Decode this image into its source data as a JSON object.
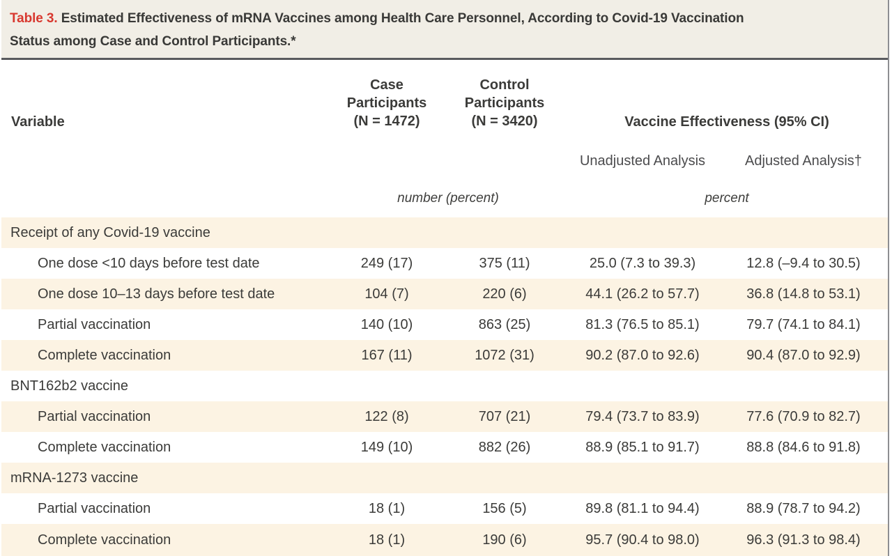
{
  "table": {
    "label": "Table 3.",
    "title_line1": "Estimated Effectiveness of mRNA Vaccines among Health Care Personnel, According to Covid-19 Vaccination",
    "title_line2": "Status among Case and Control Participants.*",
    "accent_color": "#d8382f",
    "title_bg": "#f1eee6",
    "stripe_color": "#fcf3e3",
    "rule_color": "#595a5e"
  },
  "header": {
    "variable": "Variable",
    "case_col": [
      "Case",
      "Participants",
      "(N = 1472)"
    ],
    "control_col": [
      "Control",
      "Participants",
      "(N = 3420)"
    ],
    "effectiveness": "Vaccine Effectiveness (95% CI)",
    "unadjusted": "Unadjusted Analysis",
    "adjusted": "Adjusted Analysis†",
    "units_left": "number (percent)",
    "units_right": "percent"
  },
  "rows": [
    {
      "type": "section",
      "label": "Receipt of any Covid-19 vaccine"
    },
    {
      "type": "data",
      "label": "One dose <10 days before test date",
      "case": "249 (17)",
      "control": "375 (11)",
      "unadjusted": "25.0 (7.3 to 39.3)",
      "adjusted": "12.8 (–9.4 to 30.5)"
    },
    {
      "type": "data",
      "label": "One dose 10–13 days before test date",
      "case": "104 (7)",
      "control": "220 (6)",
      "unadjusted": "44.1 (26.2 to 57.7)",
      "adjusted": "36.8 (14.8 to 53.1)"
    },
    {
      "type": "data",
      "label": "Partial vaccination",
      "case": "140 (10)",
      "control": "863 (25)",
      "unadjusted": "81.3 (76.5 to 85.1)",
      "adjusted": "79.7 (74.1 to 84.1)"
    },
    {
      "type": "data",
      "label": "Complete vaccination",
      "case": "167 (11)",
      "control": "1072 (31)",
      "unadjusted": "90.2 (87.0 to 92.6)",
      "adjusted": "90.4 (87.0 to 92.9)"
    },
    {
      "type": "section",
      "label": "BNT162b2 vaccine"
    },
    {
      "type": "data",
      "label": "Partial vaccination",
      "case": "122 (8)",
      "control": "707 (21)",
      "unadjusted": "79.4 (73.7 to 83.9)",
      "adjusted": "77.6 (70.9 to 82.7)"
    },
    {
      "type": "data",
      "label": "Complete vaccination",
      "case": "149 (10)",
      "control": "882 (26)",
      "unadjusted": "88.9 (85.1 to 91.7)",
      "adjusted": "88.8 (84.6 to 91.8)"
    },
    {
      "type": "section",
      "label": "mRNA-1273 vaccine"
    },
    {
      "type": "data",
      "label": "Partial vaccination",
      "case": "18 (1)",
      "control": "156 (5)",
      "unadjusted": "89.8 (81.1 to 94.4)",
      "adjusted": "88.9 (78.7 to 94.2)"
    },
    {
      "type": "data",
      "label": "Complete vaccination",
      "case": "18 (1)",
      "control": "190 (6)",
      "unadjusted": "95.7 (90.4 to 98.0)",
      "adjusted": "96.3 (91.3 to 98.4)"
    }
  ]
}
